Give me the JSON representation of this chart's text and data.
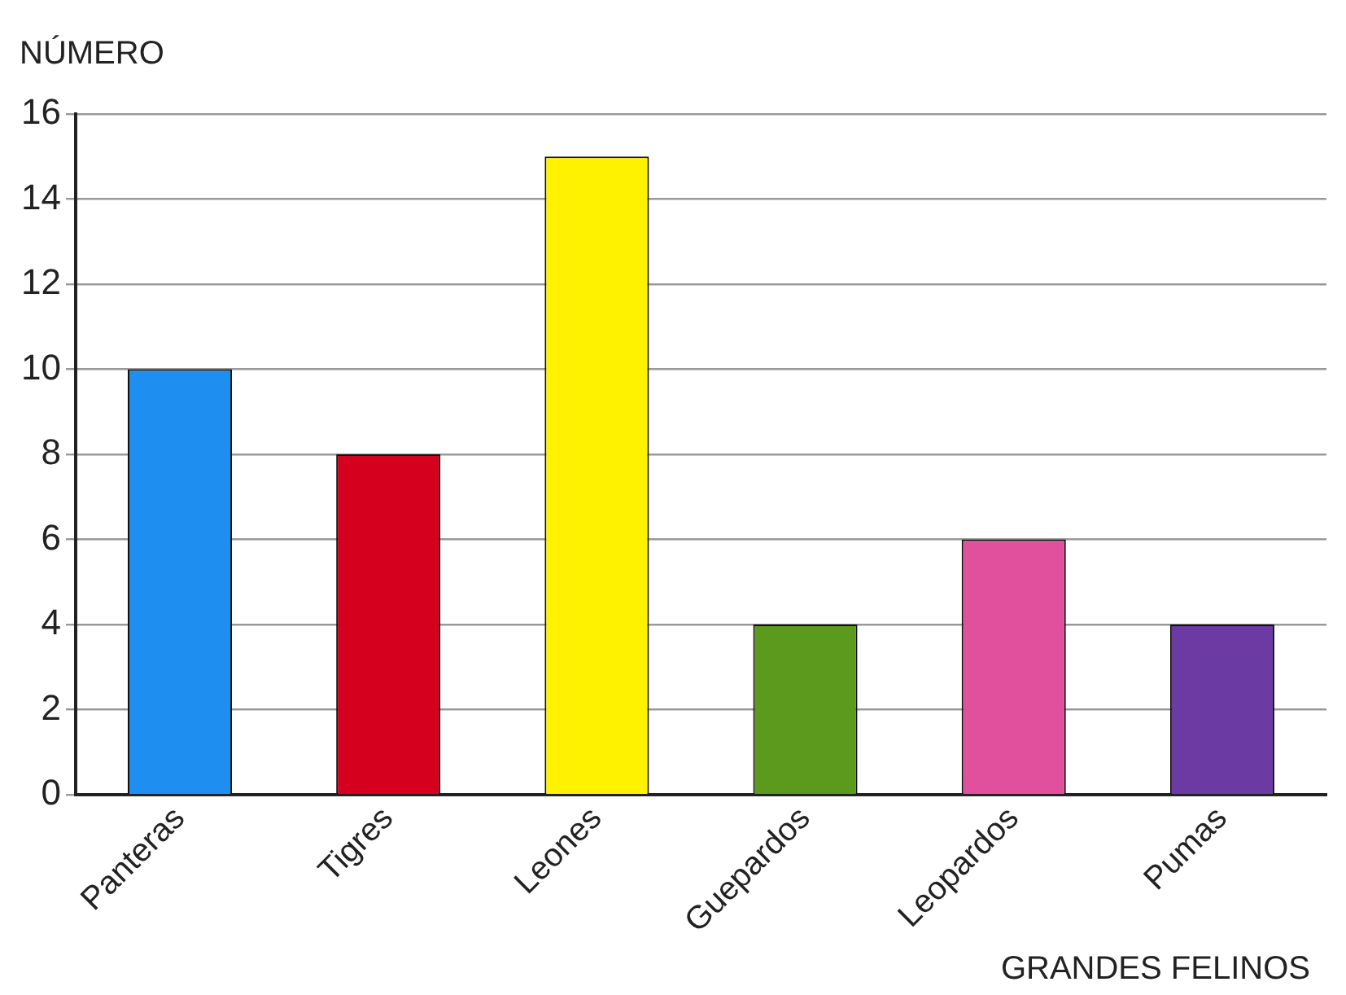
{
  "chart_data": {
    "type": "bar",
    "xlabel": "GRANDES FELINOS",
    "ylabel": "NÚMERO",
    "categories": [
      "Panteras",
      "Tigres",
      "Leones",
      "Guepardos",
      "Leopardos",
      "Pumas"
    ],
    "values": [
      10,
      8,
      15,
      4,
      6,
      4
    ],
    "colors": [
      "#1e8ff0",
      "#d4001e",
      "#fff200",
      "#5b9a1c",
      "#e0509c",
      "#6b3aa2"
    ],
    "ylim": [
      0,
      16
    ],
    "yticks": [
      0,
      2,
      4,
      6,
      8,
      10,
      12,
      14,
      16
    ],
    "grid": "y",
    "legend": false
  }
}
